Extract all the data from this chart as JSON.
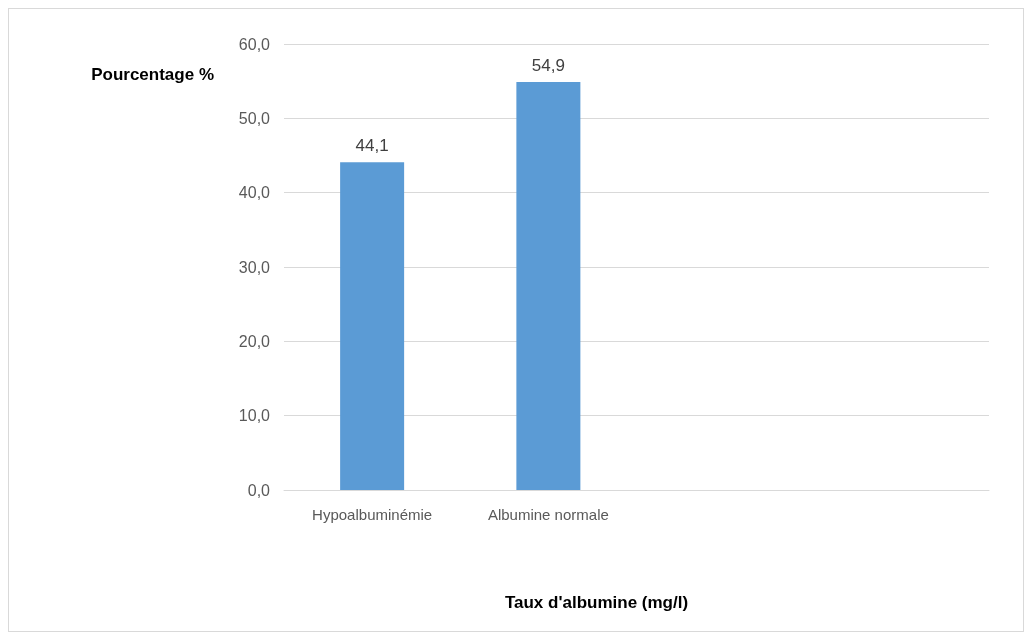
{
  "chart_data": {
    "type": "bar",
    "xlabel": "Taux d'albumine (mg/l)",
    "ylabel": "Pourcentage %",
    "categories": [
      "Hypoalbuminémie",
      "Albumine normale",
      null,
      null
    ],
    "values": [
      44.1,
      54.9,
      null,
      null
    ],
    "value_labels": [
      "44,1",
      "54,9",
      null,
      null
    ],
    "color": "#5b9bd5",
    "ylim": [
      0,
      60
    ],
    "yticks": [
      {
        "value": 0,
        "label": "0,0"
      },
      {
        "value": 10,
        "label": "10,0"
      },
      {
        "value": 20,
        "label": "20,0"
      },
      {
        "value": 30,
        "label": "30,0"
      },
      {
        "value": 40,
        "label": "40,0"
      },
      {
        "value": 50,
        "label": "50,0"
      },
      {
        "value": 60,
        "label": "60,0"
      }
    ],
    "grid": "y"
  }
}
